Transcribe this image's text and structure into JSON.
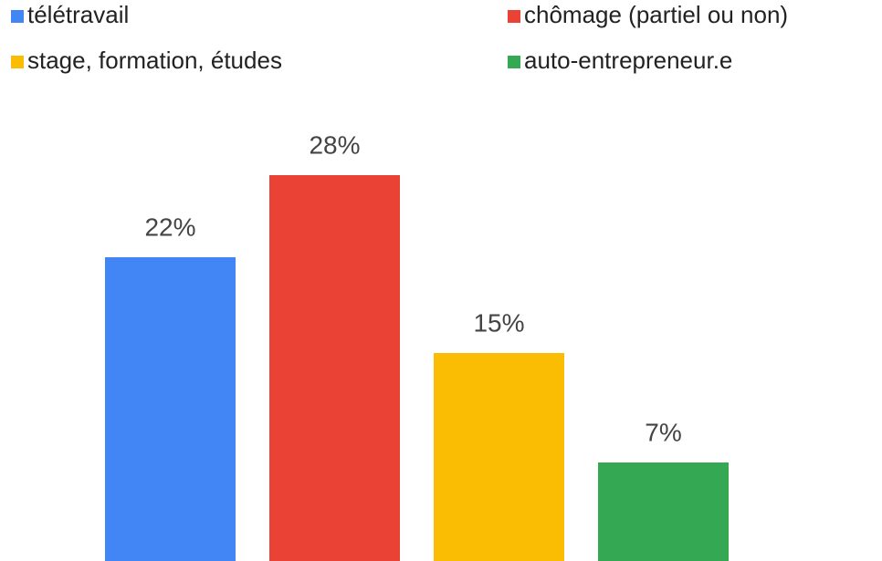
{
  "chart_data": {
    "type": "bar",
    "series": [
      {
        "name": "télétravail",
        "color": "#4285f4",
        "values": [
          22
        ],
        "value_labels": [
          "22%"
        ]
      },
      {
        "name": "chômage (partiel ou non)",
        "color": "#ea4335",
        "values": [
          28
        ],
        "value_labels": [
          "28%"
        ]
      },
      {
        "name": "stage, formation, études",
        "color": "#fbbc04",
        "values": [
          15
        ],
        "value_labels": [
          "15%"
        ]
      },
      {
        "name": "auto-entrepreneur.e",
        "color": "#34a853",
        "values": [
          7
        ],
        "value_labels": [
          "7%"
        ]
      }
    ],
    "legend": "top"
  }
}
